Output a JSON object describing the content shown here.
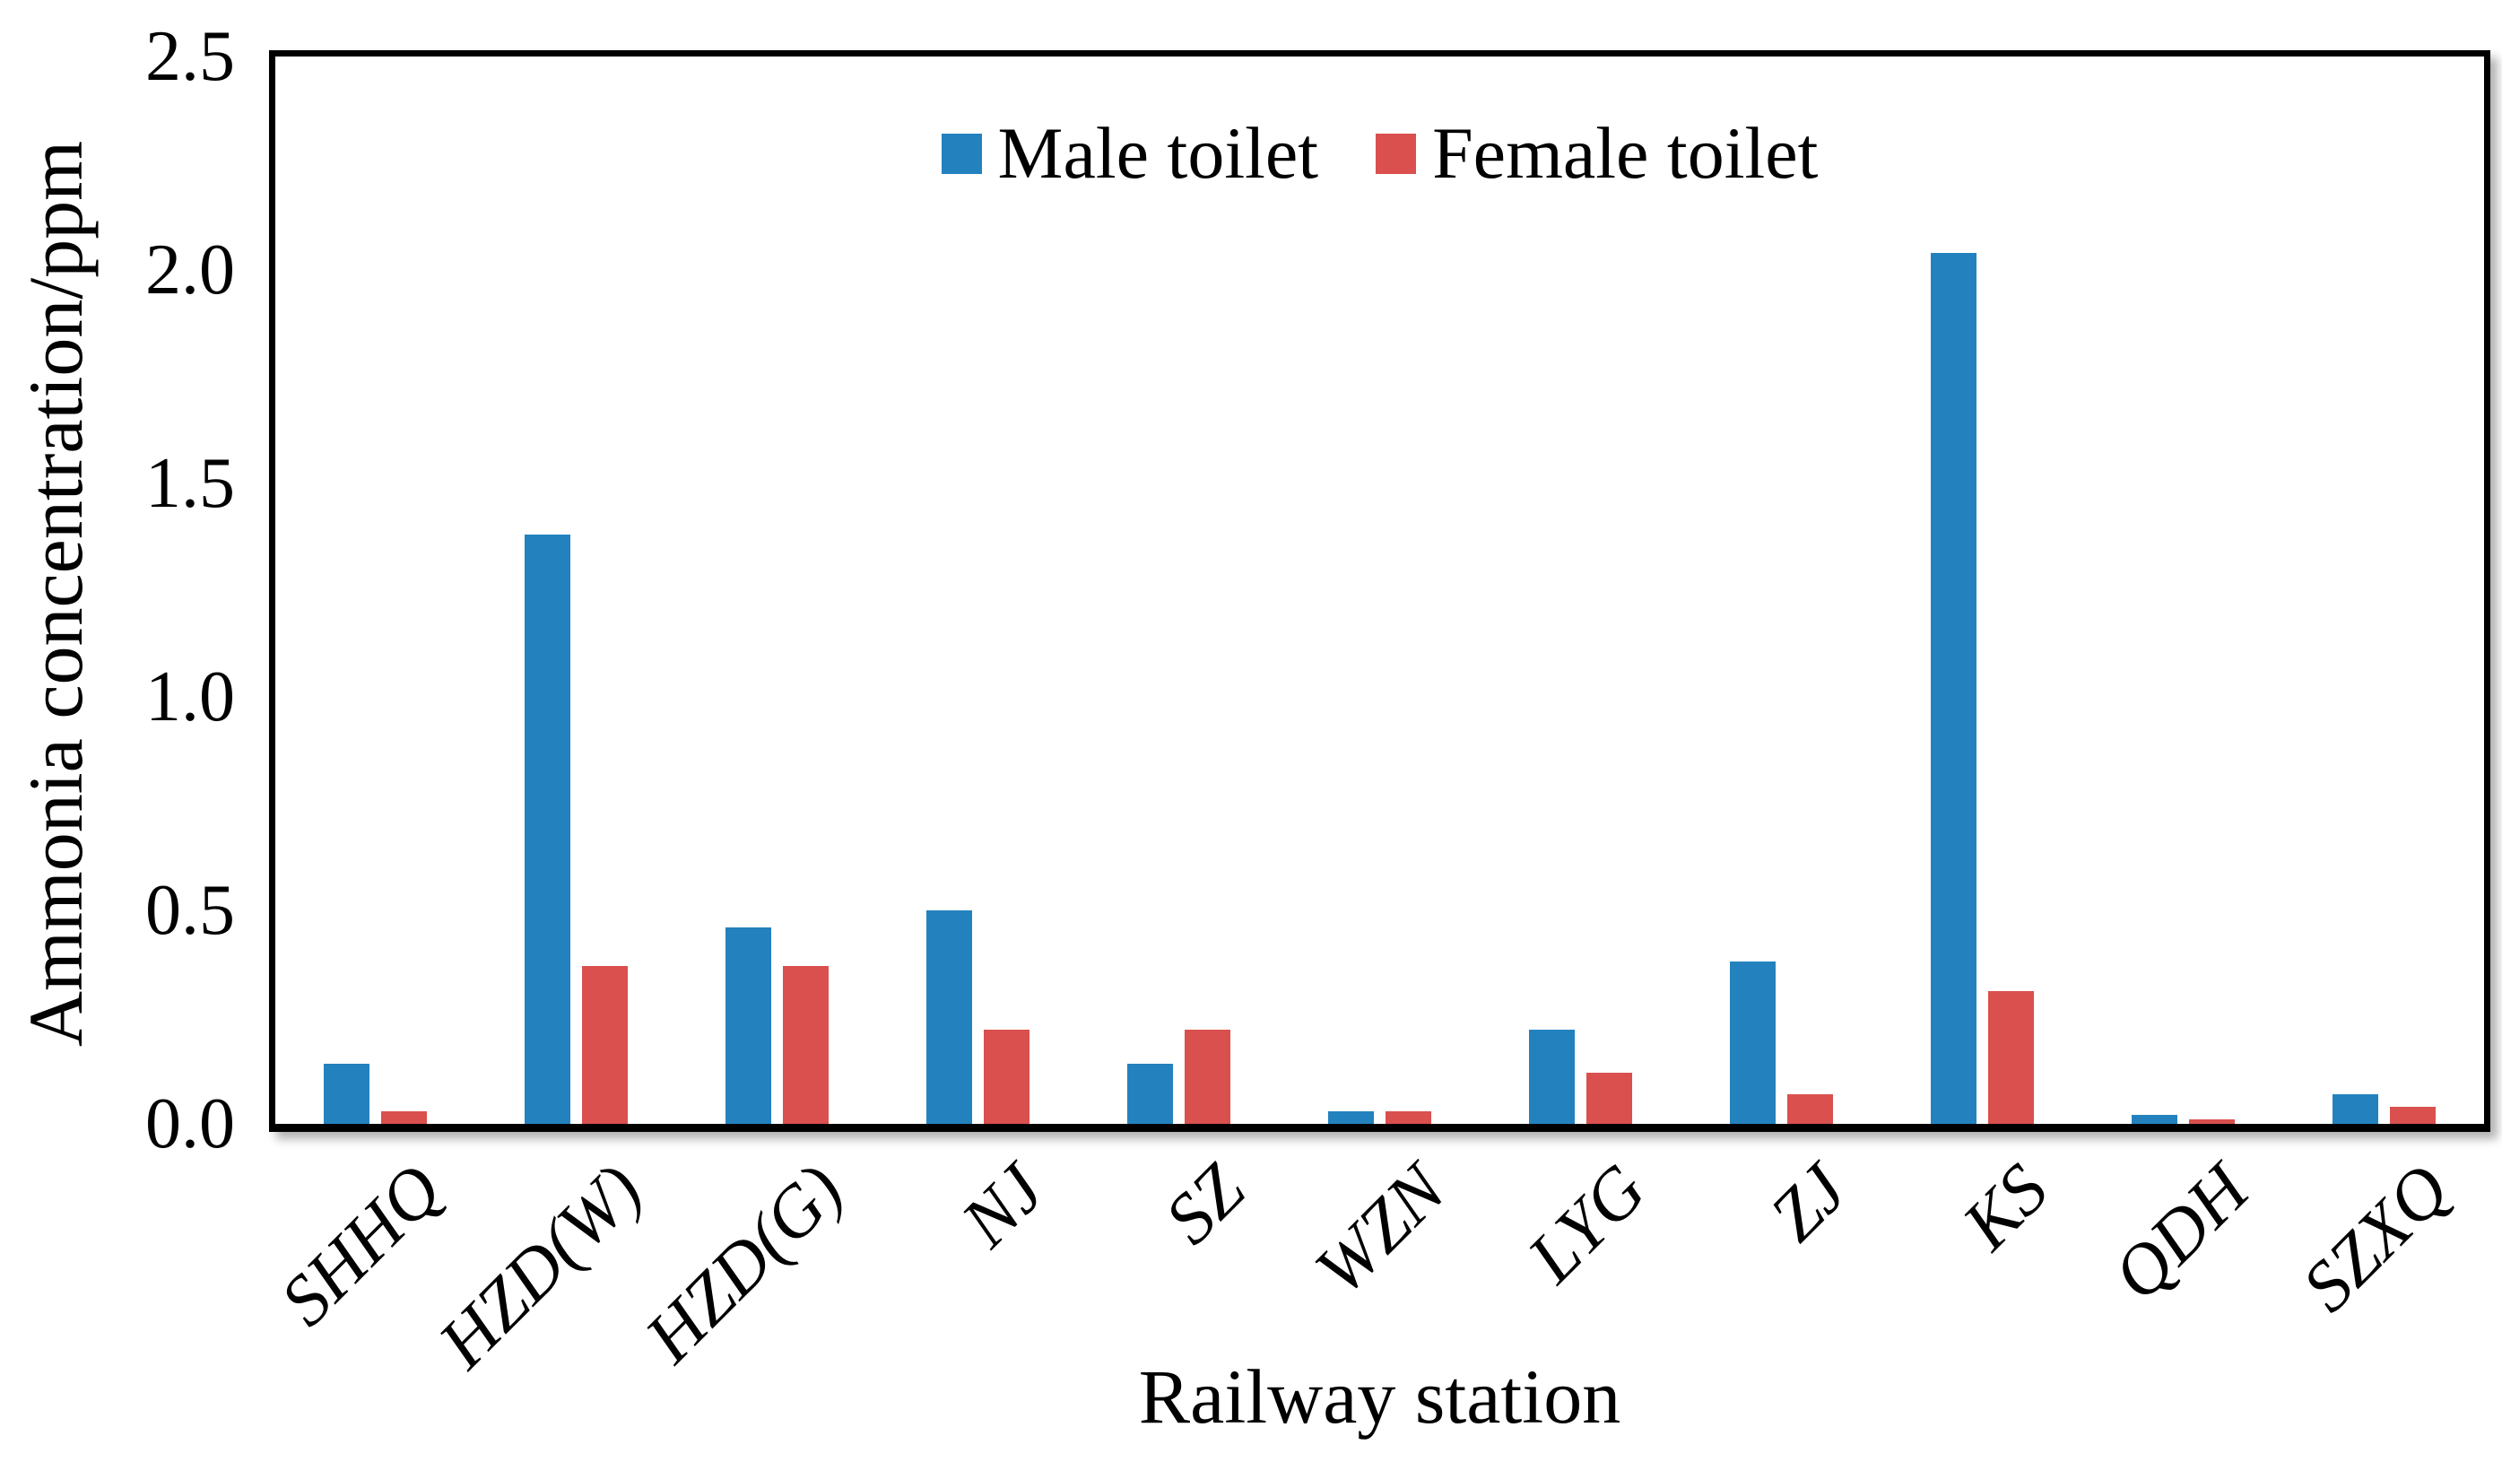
{
  "chart": {
    "y_axis_title": "Ammonia concentration/ppm",
    "x_axis_title": "Railway station",
    "accent_colors": {
      "male_blue": "#2382BE",
      "female_red": "#D9504E",
      "axis_black": "#000000"
    }
  },
  "chart_data": {
    "type": "bar",
    "title": "",
    "xlabel": "Railway station",
    "ylabel": "Ammonia concentration/ppm",
    "ylim": [
      0,
      2.5
    ],
    "y_ticks": [
      "2.5",
      "2.0",
      "1.5",
      "1.0",
      "0.5",
      "0.0"
    ],
    "grid": false,
    "legend_position": "top-center",
    "categories": [
      "SHHQ",
      "HZD(W)",
      "HZD(G)",
      "NJ",
      "SZ",
      "WZN",
      "LYG",
      "ZJ",
      "KS",
      "QDH",
      "SZXQ"
    ],
    "series": [
      {
        "name": "Male toilet",
        "color": "#2382BE",
        "values": [
          0.14,
          1.38,
          0.46,
          0.5,
          0.14,
          0.03,
          0.22,
          0.38,
          2.04,
          0.02,
          0.07
        ]
      },
      {
        "name": "Female toilet",
        "color": "#D9504E",
        "values": [
          0.03,
          0.37,
          0.37,
          0.22,
          0.22,
          0.03,
          0.12,
          0.07,
          0.31,
          0.01,
          0.04
        ]
      }
    ]
  }
}
